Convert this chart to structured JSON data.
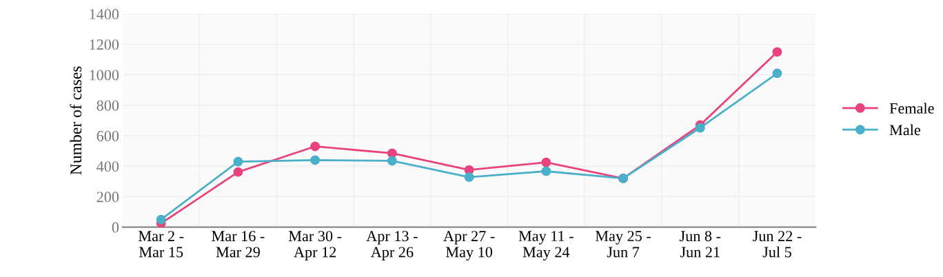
{
  "chart_data": {
    "type": "line",
    "ylabel": "Number of cases",
    "categories": [
      "Mar 2 -\nMar 15",
      "Mar 16 -\nMar 29",
      "Mar 30 -\nApr 12",
      "Apr 13 -\nApr 26",
      "Apr 27 -\nMay 10",
      "May 11 -\nMay 24",
      "May 25 -\nJun 7",
      "Jun 8 -\nJun 21",
      "Jun 22 -\nJul 5"
    ],
    "series": [
      {
        "name": "Female",
        "color": "#e8437f",
        "values": [
          25,
          362,
          530,
          485,
          375,
          425,
          320,
          670,
          1150
        ]
      },
      {
        "name": "Male",
        "color": "#4aafc8",
        "values": [
          50,
          430,
          440,
          435,
          328,
          367,
          320,
          652,
          1010
        ]
      }
    ],
    "ylim": [
      0,
      1400
    ],
    "yticks": [
      0,
      200,
      400,
      600,
      800,
      1000,
      1200,
      1400
    ],
    "grid": true,
    "legend": "right",
    "marker": "circle",
    "line_style": "solid"
  }
}
